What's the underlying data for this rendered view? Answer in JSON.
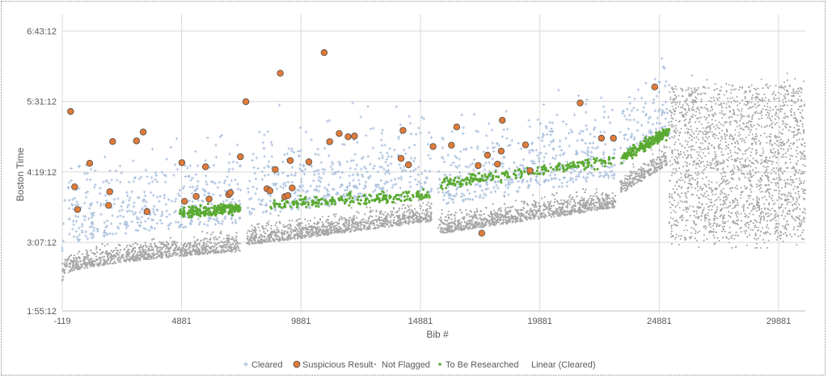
{
  "chart_data": {
    "type": "scatter",
    "xlabel": "Bib #",
    "ylabel": "Boston Time",
    "xlim": [
      -119,
      31000
    ],
    "ylim_seconds": [
      7032,
      25200
    ],
    "x_ticks": [
      -119,
      4881,
      9881,
      14881,
      19881,
      24881,
      29881
    ],
    "x_tick_labels": [
      "-119",
      "4881",
      "9881",
      "14881",
      "19881",
      "24881",
      "29881"
    ],
    "y_ticks_seconds": [
      7032,
      11232,
      15552,
      19872,
      24192
    ],
    "y_tick_labels": [
      "1:55:12",
      "3:07:12",
      "4:19:12",
      "5:31:12",
      "6:43:12"
    ],
    "grid": true,
    "legend_position": "bottom",
    "colors": {
      "cleared": "#a6bddb",
      "suspicious_fill": "#e07b39",
      "suspicious_stroke": "#4d4d4d",
      "not_flagged": "#a6a6a6",
      "to_be_researched": "#5aaa32",
      "grid": "#d9d9d9"
    },
    "series": [
      {
        "name": "Suspicious Result",
        "marker": "circle",
        "points": [
          [
            230,
            19260
          ],
          [
            400,
            14640
          ],
          [
            520,
            13250
          ],
          [
            1030,
            16080
          ],
          [
            1820,
            13500
          ],
          [
            1870,
            14340
          ],
          [
            1990,
            17420
          ],
          [
            2990,
            17460
          ],
          [
            3270,
            18000
          ],
          [
            3430,
            13120
          ],
          [
            4890,
            16120
          ],
          [
            5000,
            13750
          ],
          [
            5490,
            14050
          ],
          [
            5880,
            15870
          ],
          [
            6030,
            13890
          ],
          [
            6850,
            14160
          ],
          [
            6920,
            14280
          ],
          [
            7340,
            16480
          ],
          [
            7570,
            19860
          ],
          [
            8450,
            14520
          ],
          [
            8580,
            14400
          ],
          [
            8800,
            15700
          ],
          [
            9010,
            21600
          ],
          [
            9200,
            14030
          ],
          [
            9320,
            14100
          ],
          [
            9430,
            16250
          ],
          [
            9510,
            14570
          ],
          [
            10210,
            16170
          ],
          [
            10850,
            22870
          ],
          [
            11080,
            17410
          ],
          [
            11480,
            17910
          ],
          [
            11850,
            17710
          ],
          [
            12120,
            17750
          ],
          [
            14070,
            16380
          ],
          [
            14150,
            18100
          ],
          [
            14380,
            15990
          ],
          [
            15410,
            17110
          ],
          [
            16180,
            17190
          ],
          [
            16400,
            18310
          ],
          [
            17300,
            15950
          ],
          [
            17450,
            11800
          ],
          [
            17690,
            16580
          ],
          [
            18110,
            16030
          ],
          [
            18260,
            16830
          ],
          [
            18310,
            18720
          ],
          [
            19280,
            17210
          ],
          [
            19470,
            15630
          ],
          [
            21570,
            19780
          ],
          [
            22460,
            17620
          ],
          [
            22960,
            17620
          ],
          [
            24690,
            20760
          ]
        ]
      },
      {
        "name": "Cleared",
        "marker": "plus"
      },
      {
        "name": "Not Flagged",
        "marker": "dot"
      },
      {
        "name": "To Be Researched",
        "marker": "dot"
      },
      {
        "name": "Linear (Cleared)",
        "marker": "none"
      }
    ]
  },
  "legend": {
    "items": [
      {
        "label": "Cleared"
      },
      {
        "label": "Suspicious Result"
      },
      {
        "label": "Not Flagged"
      },
      {
        "label": "To Be Researched"
      },
      {
        "label": "Linear (Cleared)"
      }
    ]
  }
}
